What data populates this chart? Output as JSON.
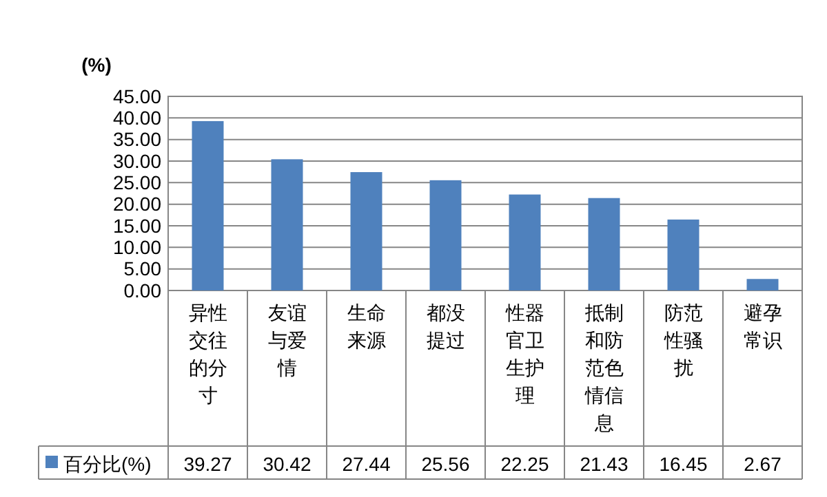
{
  "chart_data": {
    "type": "bar",
    "ylabel": "(%)",
    "categories": [
      "异性交往的分寸",
      "友谊与爱情",
      "生命来源",
      "都没提过",
      "性器官卫生护理",
      "抵制和防范色情信息",
      "防范性骚扰",
      "避孕常识"
    ],
    "series": [
      {
        "name": "百分比(%)",
        "color": "#4f81bd",
        "values": [
          39.27,
          30.42,
          27.44,
          25.56,
          22.25,
          21.43,
          16.45,
          2.67
        ]
      }
    ],
    "ylim": [
      0,
      45
    ],
    "yticks": [
      {
        "value": 0,
        "label": "0.00"
      },
      {
        "value": 5,
        "label": "5.00"
      },
      {
        "value": 10,
        "label": "10.00"
      },
      {
        "value": 15,
        "label": "15.00"
      },
      {
        "value": 20,
        "label": "20.00"
      },
      {
        "value": 25,
        "label": "25.00"
      },
      {
        "value": 30,
        "label": "30.00"
      },
      {
        "value": 35,
        "label": "35.00"
      },
      {
        "value": 40,
        "label": "40.00"
      },
      {
        "value": 45,
        "label": "45.00"
      }
    ],
    "grid": "y",
    "data_labels": true,
    "legend": "bottom"
  }
}
